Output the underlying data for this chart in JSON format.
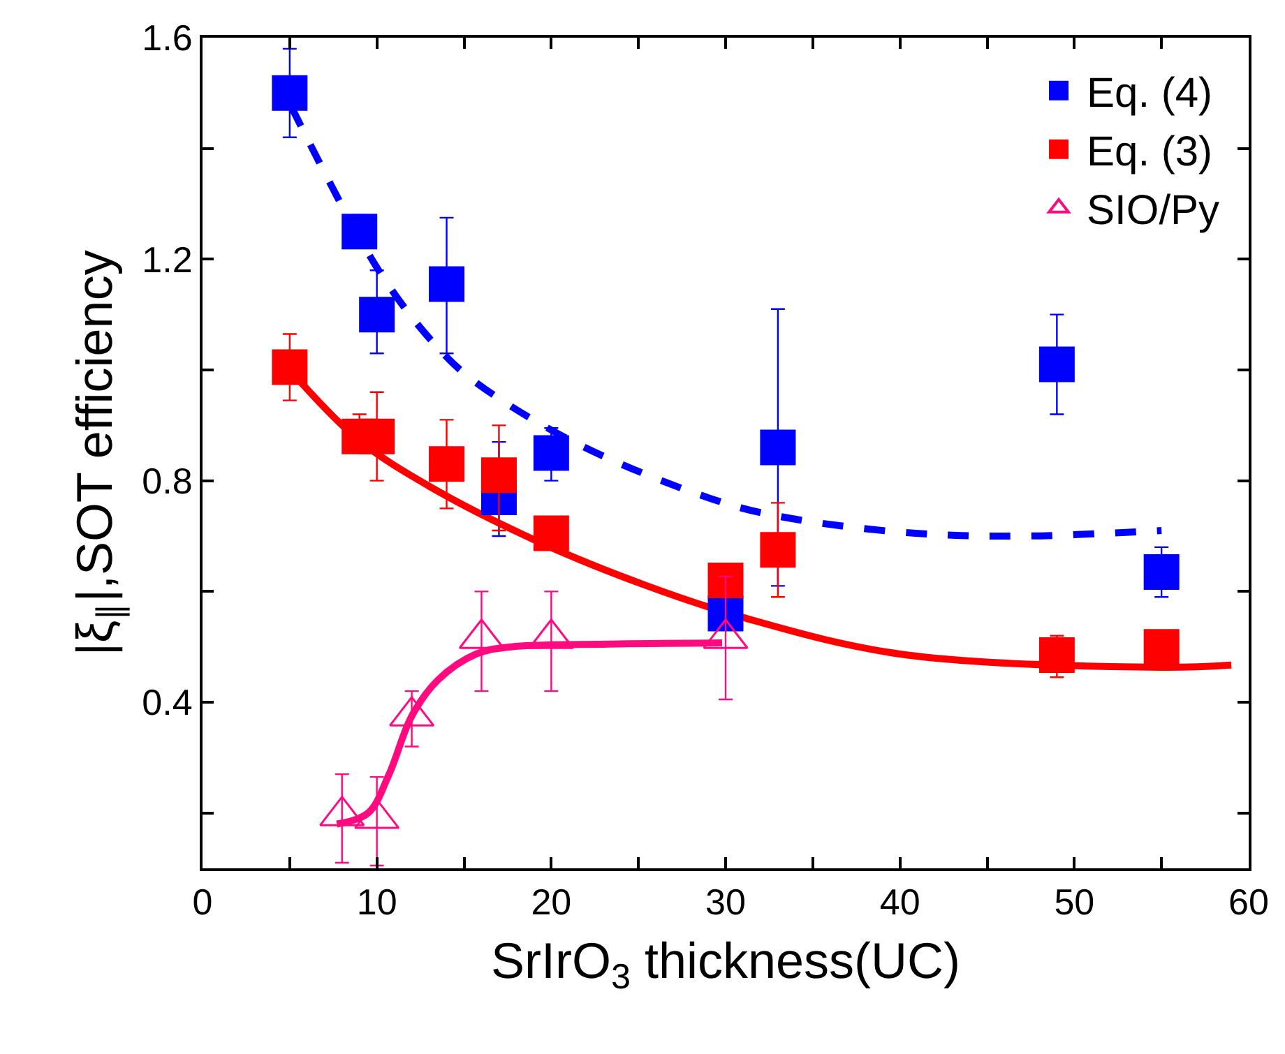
{
  "chart_data": {
    "type": "scatter",
    "xlabel": "SrIrO$_{3}$ thickness(UC)",
    "ylabel": "|ξ$_{∥}$|,SOT efficiency",
    "xlim": [
      0,
      60
    ],
    "ylim": [
      0.1,
      1.6
    ],
    "xticks": [
      0,
      {
        "value": 5,
        "label": null
      },
      10,
      {
        "value": 15,
        "label": null
      },
      20,
      {
        "value": 25,
        "label": null
      },
      30,
      {
        "value": 35,
        "label": null
      },
      40,
      {
        "value": 45,
        "label": null
      },
      50,
      {
        "value": 55,
        "label": null
      },
      60
    ],
    "yticks": [
      {
        "value": 0.2,
        "label": null
      },
      0.4,
      {
        "value": 0.6,
        "label": null
      },
      0.8,
      {
        "value": 1.0,
        "label": null
      },
      1.2,
      {
        "value": 1.4,
        "label": null
      },
      1.6
    ],
    "legend": "top right",
    "series": [
      {
        "type": "line",
        "color": "#0000ff",
        "line_style": "dashed",
        "marker": "none",
        "x": [
          5.1,
          10.2,
          13.5,
          15.7,
          21.6,
          29.9,
          34.1,
          40.9,
          47,
          55
        ],
        "values": [
          1.475,
          1.175,
          1.04,
          0.977,
          0.865,
          0.76,
          0.73,
          0.705,
          0.7,
          0.71
        ]
      },
      {
        "type": "line",
        "color": "#ff0000",
        "line_style": "solid",
        "marker": "none",
        "x": [
          5,
          8.9,
          13,
          19.6,
          25.5,
          31,
          40,
          55,
          59
        ],
        "values": [
          1.0,
          0.875,
          0.79,
          0.685,
          0.61,
          0.553,
          0.487,
          0.463,
          0.467
        ]
      },
      {
        "type": "line",
        "color": "#ff0a7f",
        "line_style": "solid",
        "marker": "none",
        "x": [
          7.7,
          9.5,
          10.7,
          12,
          13.5,
          15.7,
          17.7,
          23.3,
          29.8
        ],
        "values": [
          0.18,
          0.2,
          0.27,
          0.375,
          0.44,
          0.487,
          0.5,
          0.505,
          0.507
        ]
      },
      {
        "name": "Eq. (4)",
        "color": "#0000ff",
        "marker": "square",
        "x": [
          5,
          9,
          10,
          14,
          17,
          20,
          30,
          33,
          49,
          55
        ],
        "values": [
          1.5,
          1.25,
          1.1,
          1.155,
          0.77,
          0.85,
          0.56,
          0.86,
          1.01,
          0.635
        ],
        "errors": [
          [
            1.42,
            1.58
          ],
          [
            1.22,
            1.28
          ],
          [
            1.03,
            1.18
          ],
          [
            1.03,
            1.275
          ],
          [
            0.7,
            0.87
          ],
          [
            0.8,
            0.895
          ],
          null,
          [
            0.61,
            1.11
          ],
          [
            0.92,
            1.1
          ],
          [
            0.59,
            0.68
          ]
        ]
      },
      {
        "name": "Eq. (3)",
        "color": "#ff0000",
        "marker": "square",
        "x": [
          5,
          9,
          10,
          14,
          17,
          20,
          30,
          33,
          49,
          55
        ],
        "values": [
          1.005,
          0.88,
          0.88,
          0.83,
          0.81,
          0.705,
          0.62,
          0.675,
          0.485,
          0.5
        ],
        "errors": [
          [
            0.945,
            1.065
          ],
          [
            0.85,
            0.92
          ],
          [
            0.8,
            0.96
          ],
          [
            0.75,
            0.91
          ],
          [
            0.71,
            0.9
          ],
          null,
          null,
          [
            0.59,
            0.76
          ],
          [
            0.445,
            0.52
          ],
          null
        ]
      },
      {
        "name": "SIO/Py",
        "color": "#ff0a7f",
        "marker": "triangle",
        "x": [
          8,
          10,
          12,
          16,
          20,
          30
        ],
        "values": [
          0.195,
          0.19,
          0.375,
          0.515,
          0.515,
          0.515
        ],
        "errors": [
          [
            0.11,
            0.27
          ],
          [
            0.105,
            0.265
          ],
          [
            0.32,
            0.42
          ],
          [
            0.42,
            0.6
          ],
          [
            0.42,
            0.6
          ],
          [
            0.405,
            0.627
          ]
        ]
      }
    ]
  }
}
